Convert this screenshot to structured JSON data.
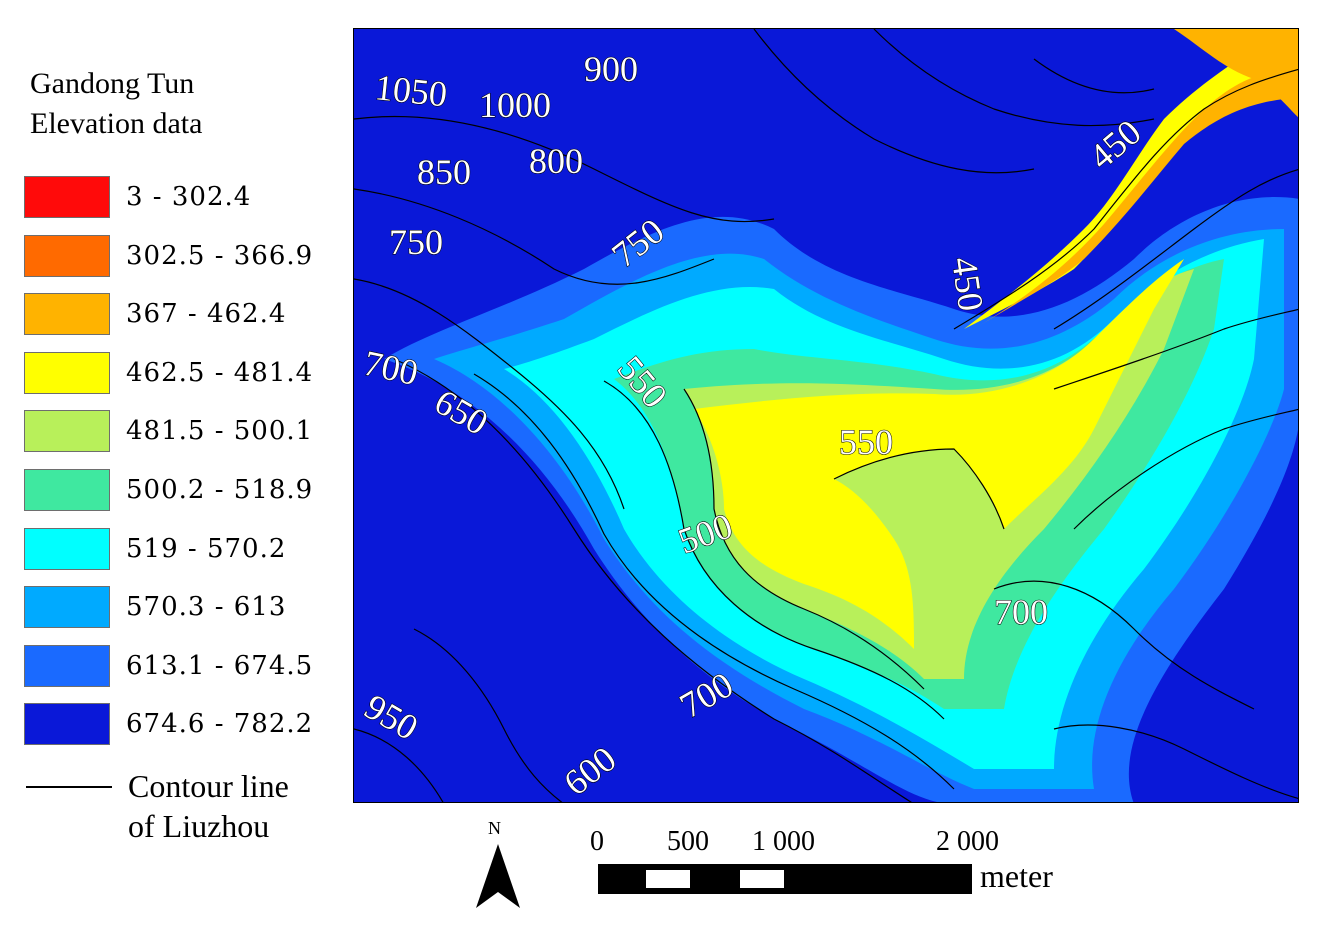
{
  "legend": {
    "title_line1": "Gandong Tun",
    "title_line2": "Elevation data",
    "items": [
      {
        "label": "3 - 302.4",
        "color": "#ff0a0a"
      },
      {
        "label": "302.5 - 366.9",
        "color": "#ff6a00"
      },
      {
        "label": "367 - 462.4",
        "color": "#ffb300"
      },
      {
        "label": "462.5 - 481.4",
        "color": "#ffff00"
      },
      {
        "label": "481.5 - 500.1",
        "color": "#b8f05a"
      },
      {
        "label": "500.2 - 518.9",
        "color": "#3fe8a0"
      },
      {
        "label": "519 - 570.2",
        "color": "#00ffff"
      },
      {
        "label": "570.3 - 613",
        "color": "#00aaff"
      },
      {
        "label": "613.1 - 674.5",
        "color": "#1a6aff"
      },
      {
        "label": "674.6 - 782.2",
        "color": "#0a18d8"
      }
    ],
    "contour_label_line1": "Contour line",
    "contour_label_line2": "of Liuzhou"
  },
  "map": {
    "contour_labels": [
      "1050",
      "1000",
      "900",
      "850",
      "800",
      "750",
      "750",
      "700",
      "650",
      "550",
      "550",
      "500",
      "450",
      "450",
      "700",
      "700",
      "950",
      "600"
    ]
  },
  "north_arrow": {
    "letter": "N"
  },
  "scale_bar": {
    "ticks": [
      "0",
      "500",
      "1 000",
      "2 000"
    ],
    "unit": "meter"
  }
}
